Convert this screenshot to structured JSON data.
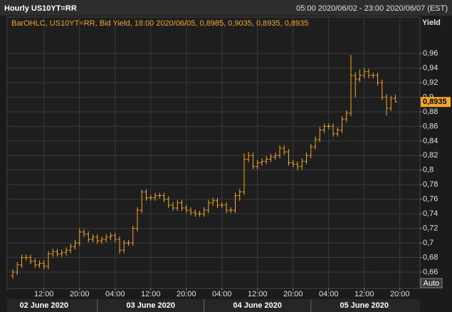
{
  "header": {
    "title": "Hourly US10YT=RR",
    "range": "05:00 2020/06/02 - 23:00 2020/06/07 (EST)"
  },
  "chart_data": {
    "type": "ohlc",
    "subtitle": "BarOHLC, US10YT=RR, Bid Yield, 18:00 2020/06/05, 0,8985, 0,9035, 0,8935, 0,8935",
    "y_axis_label": "Yield",
    "price_tag": "0,8935",
    "auto_button": "Auto",
    "color": "#f5a623",
    "grid": true,
    "categories": [
      null,
      null,
      null,
      null,
      null,
      null,
      null,
      "12:00",
      null,
      null,
      null,
      null,
      null,
      null,
      null,
      "20:00",
      null,
      null,
      null,
      null,
      null,
      null,
      null,
      "04:00",
      null,
      null,
      null,
      null,
      null,
      null,
      null,
      "12:00",
      null,
      null,
      null,
      null,
      null,
      null,
      null,
      "20:00",
      null,
      null,
      null,
      null,
      null,
      null,
      null,
      "04:00",
      null,
      null,
      null,
      null,
      null,
      null,
      null,
      "12:00",
      null,
      null,
      null,
      null,
      null,
      null,
      null,
      "20:00",
      null,
      null,
      null,
      null,
      null,
      null,
      null,
      "04:00",
      null,
      null,
      null,
      null,
      null,
      null,
      null,
      "12:00",
      null,
      null,
      null,
      null,
      null,
      null,
      null,
      "20:00"
    ],
    "dates": [
      "02 June 2020",
      "03 June 2020",
      "04 June 2020",
      "05 June 2020"
    ],
    "open": [
      0.655,
      0.66,
      0.67,
      0.68,
      0.68,
      0.675,
      0.67,
      0.672,
      0.668,
      0.685,
      0.688,
      0.685,
      0.687,
      0.69,
      0.695,
      0.7,
      0.715,
      0.712,
      0.705,
      0.708,
      0.703,
      0.705,
      0.708,
      0.71,
      0.705,
      0.69,
      0.7,
      0.7,
      0.72,
      0.745,
      0.77,
      0.762,
      0.762,
      0.765,
      0.765,
      0.76,
      0.752,
      0.748,
      0.755,
      0.748,
      0.745,
      0.742,
      0.74,
      0.74,
      0.745,
      0.755,
      0.758,
      0.752,
      0.752,
      0.745,
      0.745,
      0.765,
      0.77,
      0.815,
      0.82,
      0.805,
      0.81,
      0.812,
      0.815,
      0.818,
      0.82,
      0.83,
      0.825,
      0.81,
      0.808,
      0.805,
      0.812,
      0.82,
      0.832,
      0.842,
      0.855,
      0.86,
      0.86,
      0.85,
      0.855,
      0.87,
      0.878,
      0.93,
      0.925,
      0.93,
      0.935,
      0.93,
      0.93,
      0.92,
      0.9,
      0.885,
      0.8985,
      null
    ],
    "high": [
      0.664,
      0.674,
      0.684,
      0.684,
      0.684,
      0.679,
      0.676,
      0.676,
      0.689,
      0.692,
      0.692,
      0.691,
      0.694,
      0.699,
      0.704,
      0.72,
      0.719,
      0.716,
      0.712,
      0.712,
      0.709,
      0.712,
      0.714,
      0.714,
      0.709,
      0.704,
      0.704,
      0.724,
      0.749,
      0.773,
      0.774,
      0.766,
      0.769,
      0.769,
      0.769,
      0.764,
      0.756,
      0.759,
      0.759,
      0.752,
      0.749,
      0.746,
      0.744,
      0.749,
      0.759,
      0.762,
      0.762,
      0.756,
      0.756,
      0.749,
      0.769,
      0.774,
      0.823,
      0.825,
      0.824,
      0.814,
      0.816,
      0.819,
      0.822,
      0.824,
      0.834,
      0.834,
      0.829,
      0.814,
      0.812,
      0.816,
      0.824,
      0.836,
      0.846,
      0.859,
      0.864,
      0.864,
      0.864,
      0.859,
      0.874,
      0.882,
      0.958,
      0.934,
      0.938,
      0.94,
      0.939,
      0.934,
      0.934,
      0.924,
      0.904,
      0.902,
      0.9035,
      null
    ],
    "low": [
      0.651,
      0.656,
      0.666,
      0.676,
      0.671,
      0.666,
      0.666,
      0.664,
      0.664,
      0.681,
      0.681,
      0.681,
      0.683,
      0.686,
      0.691,
      0.696,
      0.708,
      0.701,
      0.701,
      0.699,
      0.699,
      0.701,
      0.704,
      0.701,
      0.685,
      0.686,
      0.696,
      0.696,
      0.716,
      0.741,
      0.758,
      0.758,
      0.758,
      0.761,
      0.756,
      0.748,
      0.744,
      0.744,
      0.744,
      0.741,
      0.738,
      0.736,
      0.736,
      0.736,
      0.741,
      0.751,
      0.748,
      0.748,
      0.741,
      0.741,
      0.741,
      0.758,
      0.766,
      0.811,
      0.801,
      0.801,
      0.806,
      0.808,
      0.811,
      0.814,
      0.816,
      0.821,
      0.806,
      0.804,
      0.8,
      0.801,
      0.808,
      0.816,
      0.828,
      0.838,
      0.851,
      0.856,
      0.846,
      0.846,
      0.851,
      0.866,
      0.874,
      0.9,
      0.921,
      0.926,
      0.926,
      0.926,
      0.916,
      0.896,
      0.875,
      0.881,
      0.8935,
      null
    ],
    "close": [
      0.66,
      0.67,
      0.68,
      0.68,
      0.675,
      0.67,
      0.672,
      0.668,
      0.685,
      0.688,
      0.685,
      0.687,
      0.69,
      0.695,
      0.7,
      0.715,
      0.712,
      0.705,
      0.708,
      0.703,
      0.705,
      0.708,
      0.71,
      0.705,
      0.69,
      0.7,
      0.7,
      0.72,
      0.745,
      0.77,
      0.762,
      0.762,
      0.765,
      0.765,
      0.76,
      0.752,
      0.748,
      0.755,
      0.748,
      0.745,
      0.742,
      0.74,
      0.74,
      0.745,
      0.755,
      0.758,
      0.752,
      0.752,
      0.745,
      0.745,
      0.765,
      0.77,
      0.815,
      0.82,
      0.805,
      0.81,
      0.812,
      0.815,
      0.818,
      0.82,
      0.83,
      0.825,
      0.81,
      0.808,
      0.805,
      0.812,
      0.82,
      0.832,
      0.842,
      0.855,
      0.86,
      0.86,
      0.85,
      0.855,
      0.87,
      0.878,
      0.93,
      0.925,
      0.93,
      0.935,
      0.93,
      0.93,
      0.92,
      0.9,
      0.885,
      0.8985,
      0.8935,
      null
    ],
    "ylim": [
      0.6375,
      1.01
    ],
    "yticks": [
      {
        "value": 0.66,
        "label": "0,66"
      },
      {
        "value": 0.68,
        "label": "0,68"
      },
      {
        "value": 0.7,
        "label": "0,7"
      },
      {
        "value": 0.72,
        "label": "0,72"
      },
      {
        "value": 0.74,
        "label": "0,74"
      },
      {
        "value": 0.76,
        "label": "0,76"
      },
      {
        "value": 0.78,
        "label": "0,78"
      },
      {
        "value": 0.8,
        "label": "0,8"
      },
      {
        "value": 0.82,
        "label": "0,82"
      },
      {
        "value": 0.84,
        "label": "0,84"
      },
      {
        "value": 0.86,
        "label": "0,86"
      },
      {
        "value": 0.88,
        "label": "0,88"
      },
      {
        "value": 0.9,
        "label": "0,9"
      },
      {
        "value": 0.92,
        "label": "0,92"
      },
      {
        "value": 0.94,
        "label": "0,94"
      },
      {
        "value": 0.96,
        "label": "0,96"
      }
    ]
  }
}
